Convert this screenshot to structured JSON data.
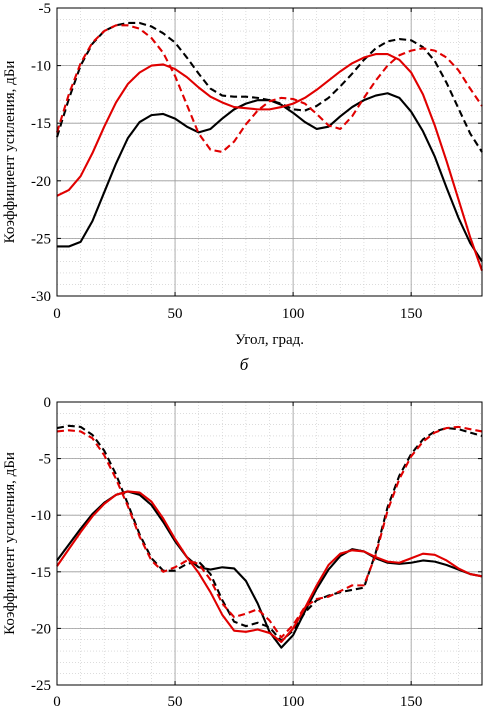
{
  "figure": {
    "panel_label": "б"
  },
  "chart_data": [
    {
      "type": "line",
      "title": "",
      "xlabel": "Угол, град.",
      "ylabel": "Коэффициент усиления, дБи",
      "xlim": [
        0,
        180
      ],
      "ylim": [
        -30,
        -5
      ],
      "xticks": [
        0,
        50,
        100,
        150
      ],
      "yticks": [
        -30,
        -25,
        -20,
        -15,
        -10,
        -5
      ],
      "grid": true,
      "minor_grid": true,
      "series": [
        {
          "color": "#000000",
          "dash": "solid",
          "x": [
            0,
            5,
            10,
            15,
            20,
            25,
            30,
            35,
            40,
            45,
            50,
            55,
            60,
            65,
            70,
            75,
            80,
            85,
            90,
            95,
            100,
            105,
            110,
            115,
            120,
            125,
            130,
            135,
            140,
            145,
            150,
            155,
            160,
            165,
            170,
            175,
            180
          ],
          "y": [
            -25.7,
            -25.7,
            -25.3,
            -23.5,
            -21.0,
            -18.5,
            -16.3,
            -14.9,
            -14.3,
            -14.2,
            -14.6,
            -15.3,
            -15.8,
            -15.5,
            -14.6,
            -13.8,
            -13.3,
            -13.0,
            -13.0,
            -13.4,
            -14.1,
            -14.9,
            -15.5,
            -15.3,
            -14.4,
            -13.6,
            -13.0,
            -12.6,
            -12.4,
            -12.8,
            -14.0,
            -15.7,
            -17.9,
            -20.6,
            -23.2,
            -25.4,
            -27.0
          ]
        },
        {
          "color": "#000000",
          "dash": "dashed",
          "x": [
            0,
            5,
            10,
            15,
            20,
            25,
            30,
            35,
            40,
            45,
            50,
            55,
            60,
            65,
            70,
            75,
            80,
            85,
            90,
            95,
            100,
            105,
            110,
            115,
            120,
            125,
            130,
            135,
            140,
            145,
            150,
            155,
            160,
            165,
            170,
            175,
            180
          ],
          "y": [
            -16.2,
            -12.9,
            -10.0,
            -8.1,
            -7.0,
            -6.5,
            -6.3,
            -6.3,
            -6.6,
            -7.2,
            -8.0,
            -9.3,
            -10.7,
            -12.0,
            -12.6,
            -12.7,
            -12.7,
            -12.8,
            -13.0,
            -13.3,
            -13.8,
            -13.9,
            -13.5,
            -12.8,
            -11.8,
            -10.7,
            -9.5,
            -8.5,
            -7.9,
            -7.7,
            -7.8,
            -8.4,
            -9.6,
            -11.5,
            -13.7,
            -15.9,
            -17.5
          ]
        },
        {
          "color": "#e00000",
          "dash": "solid",
          "x": [
            0,
            5,
            10,
            15,
            20,
            25,
            30,
            35,
            40,
            45,
            50,
            55,
            60,
            65,
            70,
            75,
            80,
            85,
            90,
            95,
            100,
            105,
            110,
            115,
            120,
            125,
            130,
            135,
            140,
            145,
            150,
            155,
            160,
            165,
            170,
            175,
            180
          ],
          "y": [
            -21.3,
            -20.8,
            -19.6,
            -17.6,
            -15.3,
            -13.2,
            -11.6,
            -10.6,
            -10.0,
            -9.9,
            -10.3,
            -11.0,
            -11.9,
            -12.7,
            -13.2,
            -13.6,
            -13.7,
            -13.8,
            -13.8,
            -13.6,
            -13.3,
            -12.8,
            -12.1,
            -11.3,
            -10.5,
            -9.8,
            -9.3,
            -9.0,
            -9.0,
            -9.5,
            -10.6,
            -12.5,
            -15.2,
            -18.3,
            -21.6,
            -24.9,
            -27.8
          ]
        },
        {
          "color": "#e00000",
          "dash": "dashed",
          "x": [
            0,
            5,
            10,
            15,
            20,
            25,
            30,
            35,
            40,
            45,
            50,
            55,
            60,
            65,
            70,
            75,
            80,
            85,
            90,
            95,
            100,
            105,
            110,
            115,
            120,
            125,
            130,
            135,
            140,
            145,
            150,
            155,
            160,
            165,
            170,
            175,
            180
          ],
          "y": [
            -15.8,
            -12.5,
            -9.8,
            -8.0,
            -7.0,
            -6.5,
            -6.5,
            -6.8,
            -7.6,
            -8.9,
            -10.9,
            -13.4,
            -15.9,
            -17.3,
            -17.5,
            -16.6,
            -15.1,
            -13.9,
            -13.1,
            -12.8,
            -12.9,
            -13.3,
            -14.2,
            -15.2,
            -15.5,
            -14.4,
            -12.8,
            -11.3,
            -10.0,
            -9.1,
            -8.7,
            -8.5,
            -8.7,
            -9.3,
            -10.4,
            -12.0,
            -13.5
          ]
        }
      ]
    },
    {
      "type": "line",
      "title": "",
      "xlabel": "",
      "ylabel": "Коэффициент усиления, дБи",
      "xlim": [
        0,
        180
      ],
      "ylim": [
        -25,
        0
      ],
      "xticks": [
        0,
        50,
        100,
        150
      ],
      "yticks": [
        -25,
        -20,
        -15,
        -10,
        -5,
        0
      ],
      "grid": true,
      "minor_grid": true,
      "series": [
        {
          "color": "#000000",
          "dash": "solid",
          "x": [
            0,
            5,
            10,
            15,
            20,
            25,
            30,
            35,
            40,
            45,
            50,
            55,
            60,
            65,
            70,
            75,
            80,
            85,
            90,
            95,
            100,
            105,
            110,
            115,
            120,
            125,
            130,
            135,
            140,
            145,
            150,
            155,
            160,
            165,
            170,
            175,
            180
          ],
          "y": [
            -14.0,
            -12.6,
            -11.2,
            -9.9,
            -8.9,
            -8.2,
            -7.9,
            -8.2,
            -9.1,
            -10.6,
            -12.3,
            -13.7,
            -14.6,
            -14.8,
            -14.6,
            -14.7,
            -15.8,
            -17.8,
            -20.3,
            -21.7,
            -20.6,
            -18.5,
            -16.5,
            -14.8,
            -13.6,
            -13.0,
            -13.2,
            -13.8,
            -14.2,
            -14.3,
            -14.2,
            -14.0,
            -14.1,
            -14.4,
            -14.8,
            -15.2,
            -15.4
          ]
        },
        {
          "color": "#000000",
          "dash": "dashed",
          "x": [
            0,
            5,
            10,
            15,
            20,
            25,
            30,
            35,
            40,
            45,
            50,
            55,
            60,
            65,
            70,
            75,
            80,
            85,
            90,
            95,
            100,
            105,
            110,
            115,
            120,
            125,
            130,
            135,
            140,
            145,
            150,
            155,
            160,
            165,
            170,
            175,
            180
          ],
          "y": [
            -2.3,
            -2.1,
            -2.2,
            -2.9,
            -4.3,
            -6.4,
            -9.0,
            -11.7,
            -13.8,
            -14.9,
            -14.9,
            -14.3,
            -14.1,
            -15.2,
            -17.5,
            -19.4,
            -19.8,
            -19.5,
            -19.9,
            -21.1,
            -20.2,
            -18.6,
            -17.5,
            -17.1,
            -16.8,
            -16.6,
            -16.4,
            -13.3,
            -9.3,
            -6.5,
            -4.6,
            -3.3,
            -2.6,
            -2.3,
            -2.4,
            -2.7,
            -3.0
          ]
        },
        {
          "color": "#e00000",
          "dash": "solid",
          "x": [
            0,
            5,
            10,
            15,
            20,
            25,
            30,
            35,
            40,
            45,
            50,
            55,
            60,
            65,
            70,
            75,
            80,
            85,
            90,
            95,
            100,
            105,
            110,
            115,
            120,
            125,
            130,
            135,
            140,
            145,
            150,
            155,
            160,
            165,
            170,
            175,
            180
          ],
          "y": [
            -14.5,
            -13.0,
            -11.5,
            -10.1,
            -9.0,
            -8.2,
            -7.9,
            -8.0,
            -8.8,
            -10.3,
            -12.1,
            -13.7,
            -15.1,
            -16.8,
            -18.8,
            -20.2,
            -20.3,
            -20.1,
            -20.4,
            -21.2,
            -20.0,
            -18.2,
            -16.2,
            -14.4,
            -13.4,
            -13.1,
            -13.2,
            -13.7,
            -14.1,
            -14.2,
            -13.8,
            -13.4,
            -13.5,
            -14.0,
            -14.7,
            -15.2,
            -15.4
          ]
        },
        {
          "color": "#e00000",
          "dash": "dashed",
          "x": [
            0,
            5,
            10,
            15,
            20,
            25,
            30,
            35,
            40,
            45,
            50,
            55,
            60,
            65,
            70,
            75,
            80,
            85,
            90,
            95,
            100,
            105,
            110,
            115,
            120,
            125,
            130,
            135,
            140,
            145,
            150,
            155,
            160,
            165,
            170,
            175,
            180
          ],
          "y": [
            -2.6,
            -2.5,
            -2.6,
            -3.2,
            -4.7,
            -6.8,
            -9.2,
            -11.9,
            -14.0,
            -15.0,
            -14.6,
            -14.0,
            -14.3,
            -15.7,
            -17.8,
            -19.0,
            -18.7,
            -18.3,
            -19.3,
            -20.8,
            -19.7,
            -18.1,
            -17.4,
            -17.2,
            -16.7,
            -16.2,
            -16.2,
            -13.5,
            -9.6,
            -6.8,
            -4.8,
            -3.5,
            -2.7,
            -2.3,
            -2.2,
            -2.4,
            -2.6
          ]
        }
      ]
    }
  ]
}
